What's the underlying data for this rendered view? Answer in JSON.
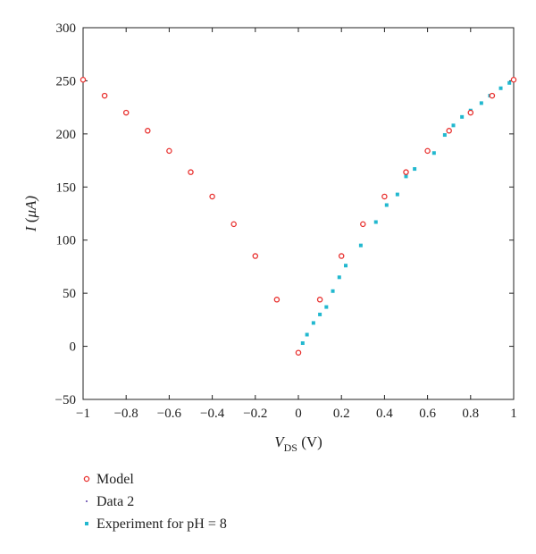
{
  "chart_data": {
    "type": "scatter",
    "xlim": [
      -1,
      1
    ],
    "ylim": [
      -50,
      300
    ],
    "xticks": [
      -1,
      -0.8,
      -0.6,
      -0.4,
      -0.2,
      0,
      0.2,
      0.4,
      0.6,
      0.8,
      1
    ],
    "xtick_labels": [
      "−1",
      "−0.8",
      "−0.6",
      "−0.4",
      "−0.2",
      "0",
      "0.2",
      "0.4",
      "0.6",
      "0.8",
      "1"
    ],
    "yticks": [
      -50,
      0,
      50,
      100,
      150,
      200,
      250,
      300
    ],
    "ytick_labels": [
      "−50",
      "0",
      "50",
      "100",
      "150",
      "200",
      "250",
      "300"
    ],
    "xlabel": {
      "main": "V",
      "sub": "DS",
      "unit": " (V)"
    },
    "ylabel": {
      "main": "I",
      "unit_prefix": " (",
      "mu": "μ",
      "unit_rest": "A)"
    },
    "grid": false,
    "legend_position": "bottom-left, below plot",
    "colors": {
      "model": "#e8312f",
      "data2": "#5a3ea8",
      "experiment": "#22b8cf"
    },
    "series": [
      {
        "name": "Model",
        "marker": "open-circle",
        "x": [
          -1.0,
          -0.9,
          -0.8,
          -0.7,
          -0.6,
          -0.5,
          -0.4,
          -0.3,
          -0.2,
          -0.1,
          0.0,
          0.1,
          0.2,
          0.3,
          0.4,
          0.5,
          0.6,
          0.7,
          0.8,
          0.9,
          1.0
        ],
        "y": [
          251,
          236,
          220,
          203,
          184,
          164,
          141,
          115,
          85,
          44,
          -6,
          44,
          85,
          115,
          141,
          164,
          184,
          203,
          220,
          236,
          251
        ]
      },
      {
        "name": "Data 2",
        "marker": "point",
        "x": [],
        "y": []
      },
      {
        "name": "Experiment for pH = 8",
        "marker": "filled-square",
        "x": [
          0.02,
          0.04,
          0.07,
          0.1,
          0.13,
          0.16,
          0.19,
          0.22,
          0.29,
          0.36,
          0.41,
          0.46,
          0.5,
          0.54,
          0.63,
          0.68,
          0.72,
          0.76,
          0.8,
          0.85,
          0.89,
          0.94,
          0.98
        ],
        "y": [
          3,
          11,
          22,
          30,
          37,
          52,
          65,
          76,
          95,
          117,
          133,
          143,
          160,
          167,
          182,
          199,
          208,
          216,
          222,
          229,
          236,
          243,
          248
        ]
      }
    ]
  }
}
